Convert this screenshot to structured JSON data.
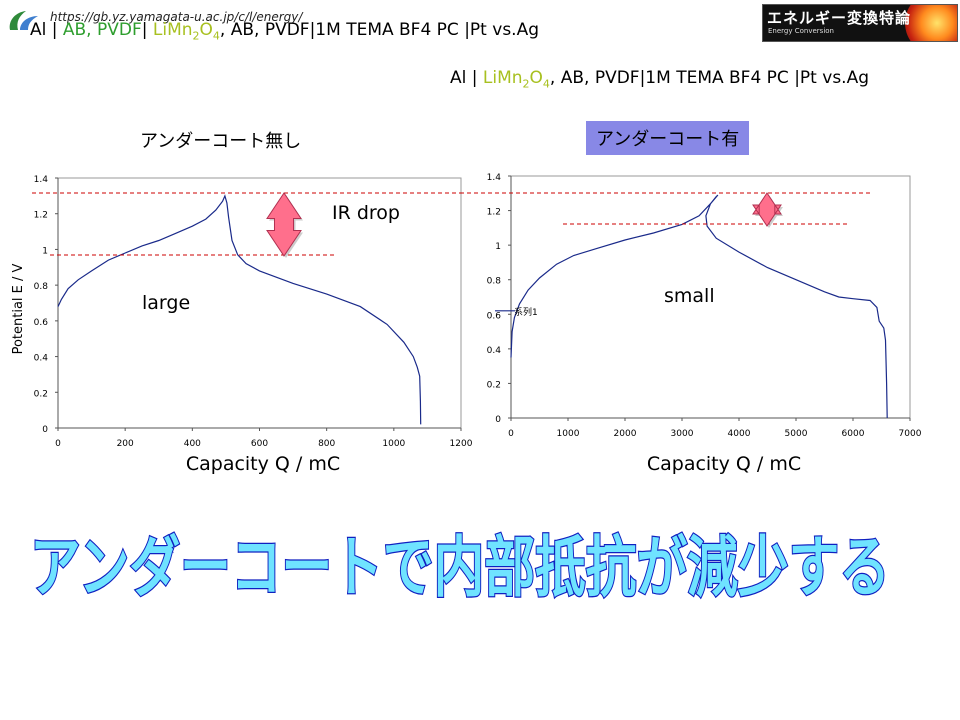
{
  "header": {
    "url": "https://gb.yz.yamagata-u.ac.jp/c/l/energy/",
    "badge_title": "エネルギー変換特論",
    "badge_subtitle": "Energy Conversion"
  },
  "cells": {
    "left": {
      "p1": "Al | ",
      "p2": "AB, PVDF",
      "p3": "| ",
      "p4": "LiMn",
      "p5": "2",
      "p6": "O",
      "p7": "4",
      "p8": ", AB, PVDF|1M TEMA BF4 PC |Pt vs.Ag"
    },
    "right": {
      "p1": "Al | ",
      "p2": "LiMn",
      "p3": "2",
      "p4": "O",
      "p5": "4",
      "p6": ", AB, PVDF|1M TEMA BF4 PC |Pt vs.Ag"
    }
  },
  "labels": {
    "without_undercoat": "アンダーコート無し",
    "with_undercoat": "アンダーコート有",
    "ir_drop": "IR drop",
    "large": "large",
    "small": "small",
    "conclusion": "アンダーコートで内部抵抗が減少する"
  },
  "colors": {
    "curve": "#1a2a8a",
    "guide_line": "#cc0000",
    "arrow_fill": "#ff6f8c",
    "badge_bg": "#111111",
    "highlight_bg": "#8888e6",
    "title_fill": "#6fe3ff",
    "title_stroke": "#1020c0"
  },
  "chart_data": [
    {
      "type": "line",
      "title": "アンダーコート無し",
      "xlabel": "Capacity   Q / mC",
      "ylabel": "Potential  E / V",
      "xlim": [
        0,
        1200
      ],
      "ylim": [
        0,
        1.4
      ],
      "xticks": [
        0,
        200,
        400,
        600,
        800,
        1000,
        1200
      ],
      "yticks": [
        0,
        0.2,
        0.4,
        0.6,
        0.8,
        1,
        1.2,
        1.4
      ],
      "grid": false,
      "series": [
        {
          "points": [
            [
              0,
              0.68
            ],
            [
              10,
              0.72
            ],
            [
              30,
              0.78
            ],
            [
              60,
              0.83
            ],
            [
              100,
              0.88
            ],
            [
              150,
              0.94
            ],
            [
              200,
              0.98
            ],
            [
              250,
              1.02
            ],
            [
              300,
              1.05
            ],
            [
              350,
              1.09
            ],
            [
              400,
              1.13
            ],
            [
              440,
              1.17
            ],
            [
              470,
              1.22
            ],
            [
              490,
              1.27
            ],
            [
              497,
              1.3
            ],
            [
              503,
              1.26
            ],
            [
              508,
              1.18
            ],
            [
              518,
              1.05
            ],
            [
              535,
              0.97
            ],
            [
              560,
              0.92
            ],
            [
              600,
              0.88
            ],
            [
              700,
              0.81
            ],
            [
              800,
              0.75
            ],
            [
              900,
              0.68
            ],
            [
              980,
              0.58
            ],
            [
              1030,
              0.48
            ],
            [
              1058,
              0.4
            ],
            [
              1070,
              0.34
            ],
            [
              1077,
              0.29
            ],
            [
              1079,
              0.15
            ],
            [
              1080,
              0.02
            ]
          ]
        }
      ]
    },
    {
      "type": "line",
      "title": "アンダーコート有",
      "xlabel": "Capacity   Q / mC",
      "xlim": [
        0,
        7000
      ],
      "ylim": [
        0,
        1.4
      ],
      "xticks": [
        0,
        1000,
        2000,
        3000,
        4000,
        5000,
        6000,
        7000
      ],
      "yticks": [
        0,
        0.2,
        0.4,
        0.6,
        0.8,
        1,
        1.2,
        1.4
      ],
      "legend": "left",
      "grid": false,
      "series": [
        {
          "name": "系列1",
          "points": [
            [
              0,
              0.35
            ],
            [
              20,
              0.5
            ],
            [
              60,
              0.58
            ],
            [
              150,
              0.66
            ],
            [
              300,
              0.74
            ],
            [
              500,
              0.81
            ],
            [
              800,
              0.89
            ],
            [
              1100,
              0.94
            ],
            [
              1500,
              0.98
            ],
            [
              2000,
              1.03
            ],
            [
              2500,
              1.07
            ],
            [
              3000,
              1.12
            ],
            [
              3300,
              1.17
            ],
            [
              3500,
              1.24
            ],
            [
              3600,
              1.28
            ],
            [
              3630,
              1.29
            ],
            [
              3500,
              1.24
            ],
            [
              3420,
              1.17
            ],
            [
              3440,
              1.11
            ],
            [
              3600,
              1.04
            ],
            [
              4000,
              0.96
            ],
            [
              4500,
              0.87
            ],
            [
              5000,
              0.8
            ],
            [
              5500,
              0.73
            ],
            [
              5750,
              0.7
            ],
            [
              6000,
              0.69
            ],
            [
              6300,
              0.68
            ],
            [
              6420,
              0.64
            ],
            [
              6460,
              0.56
            ],
            [
              6540,
              0.52
            ],
            [
              6570,
              0.45
            ],
            [
              6590,
              0.2
            ],
            [
              6600,
              0.0
            ]
          ]
        }
      ]
    }
  ]
}
